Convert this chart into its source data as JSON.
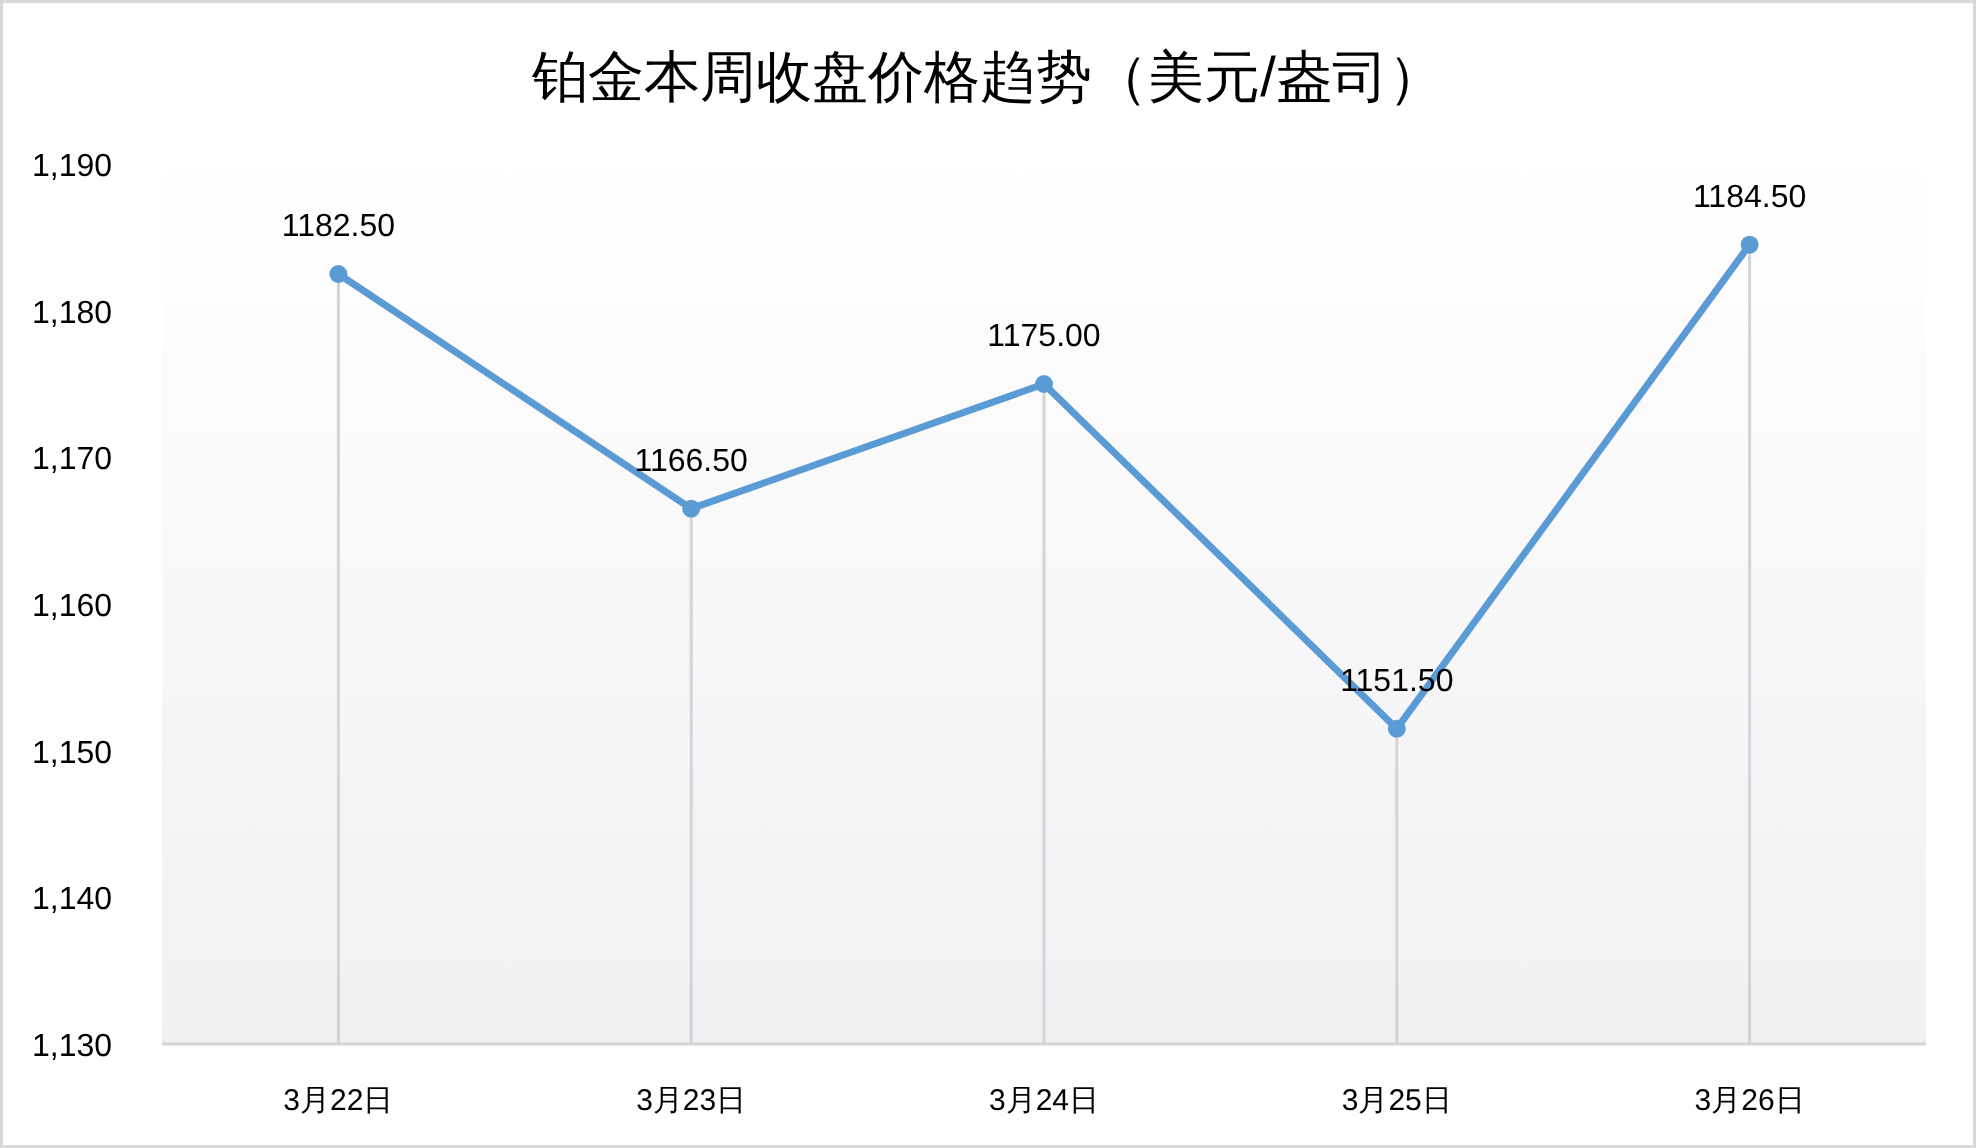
{
  "chart_data": {
    "type": "line",
    "title": "铂金本周收盘价格趋势（美元/盎司）",
    "categories": [
      "3月22日",
      "3月23日",
      "3月24日",
      "3月25日",
      "3月26日"
    ],
    "series": [
      {
        "color": "#5b9bd5",
        "values": [
          1182.5,
          1166.5,
          1175.0,
          1151.5,
          1184.5
        ],
        "value_labels": [
          "1182.50",
          "1166.50",
          "1175.00",
          "1151.50",
          "1184.50"
        ]
      }
    ],
    "ylim": [
      1130,
      1190
    ],
    "yticks": [
      {
        "value": 1130,
        "label": "1,130"
      },
      {
        "value": 1140,
        "label": "1,140"
      },
      {
        "value": 1150,
        "label": "1,150"
      },
      {
        "value": 1160,
        "label": "1,160"
      },
      {
        "value": 1170,
        "label": "1,170"
      },
      {
        "value": 1180,
        "label": "1,180"
      },
      {
        "value": 1190,
        "label": "1,190"
      }
    ],
    "grid": "x",
    "marker": "circle",
    "line_style": "solid"
  }
}
